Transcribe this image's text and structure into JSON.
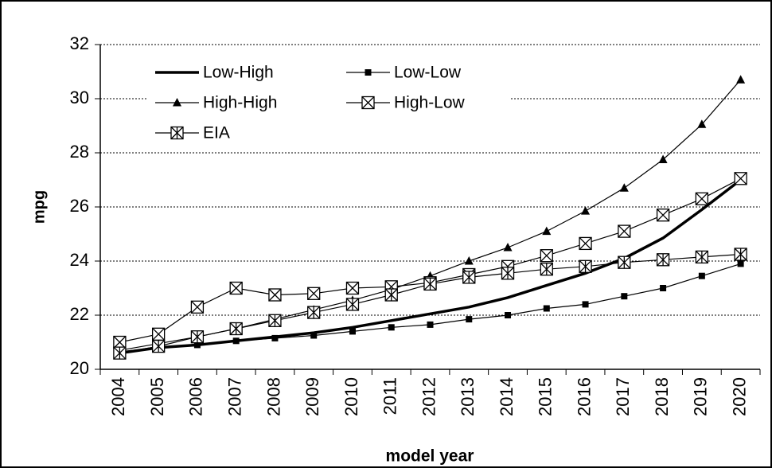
{
  "chart_data": {
    "type": "line",
    "x_label": "model year",
    "y_label": "mpg",
    "categories": [
      "2004",
      "2005",
      "2006",
      "2007",
      "2008",
      "2009",
      "2010",
      "2011",
      "2012",
      "2013",
      "2014",
      "2015",
      "2016",
      "2017",
      "2018",
      "2019",
      "2020"
    ],
    "ylim": [
      20,
      32
    ],
    "yticks": [
      20,
      22,
      24,
      26,
      28,
      30,
      32
    ],
    "grid": true,
    "legend": "upper left",
    "series": [
      {
        "name": "Low-High",
        "color": "#000000",
        "marker": "none",
        "width": 3.5,
        "values": [
          20.6,
          20.8,
          20.9,
          21.05,
          21.2,
          21.35,
          21.55,
          21.8,
          22.05,
          22.3,
          22.65,
          23.1,
          23.55,
          24.1,
          24.85,
          25.9,
          27.0
        ]
      },
      {
        "name": "Low-Low",
        "color": "#000000",
        "marker": "square",
        "width": 1.2,
        "values": [
          20.65,
          20.8,
          20.9,
          21.05,
          21.15,
          21.25,
          21.4,
          21.55,
          21.65,
          21.85,
          22.0,
          22.25,
          22.4,
          22.7,
          23.0,
          23.45,
          23.9
        ]
      },
      {
        "name": "High-High",
        "color": "#000000",
        "marker": "triangle",
        "width": 1.2,
        "values": [
          20.7,
          20.95,
          21.2,
          21.5,
          21.85,
          22.2,
          22.55,
          22.95,
          23.45,
          24.0,
          24.5,
          25.1,
          25.85,
          26.7,
          27.75,
          29.05,
          30.7
        ]
      },
      {
        "name": "High-Low",
        "color": "#000000",
        "marker": "xbox",
        "width": 1.2,
        "values": [
          21.0,
          21.3,
          22.3,
          23.0,
          22.75,
          22.8,
          23.0,
          23.05,
          23.2,
          23.5,
          23.8,
          24.2,
          24.65,
          25.1,
          25.7,
          26.3,
          27.05
        ]
      },
      {
        "name": "EIA",
        "color": "#000000",
        "marker": "starbox",
        "width": 1.2,
        "values": [
          20.6,
          20.85,
          21.2,
          21.5,
          21.8,
          22.1,
          22.4,
          22.75,
          23.15,
          23.4,
          23.55,
          23.7,
          23.8,
          23.95,
          24.05,
          24.15,
          24.25
        ]
      }
    ]
  }
}
